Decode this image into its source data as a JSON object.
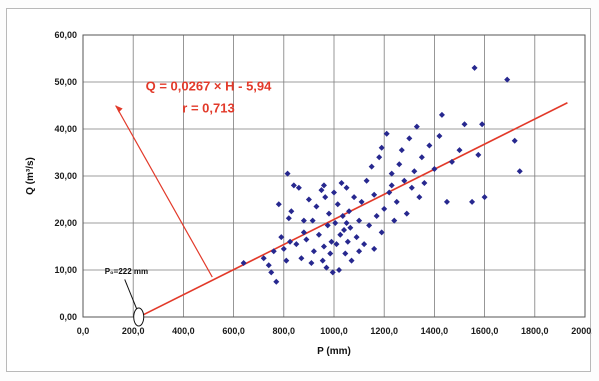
{
  "chart_data": {
    "type": "scatter",
    "title": "",
    "xlabel": "P (mm)",
    "ylabel": "Q (m³/s)",
    "xlim": [
      0,
      2000
    ],
    "ylim": [
      0,
      60
    ],
    "x_ticks": [
      "0,0",
      "200,0",
      "400,0",
      "600,0",
      "800,0",
      "1000,0",
      "1200,0",
      "1400,0",
      "1600,0",
      "1800,0",
      "2000,0"
    ],
    "y_ticks": [
      "0,00",
      "10,00",
      "20,00",
      "30,00",
      "40,00",
      "50,00",
      "60,00"
    ],
    "grid": true,
    "legend": "none",
    "colors": {
      "points": "#27288f",
      "trend": "#e23a2a",
      "grid": "#7d7d7d",
      "plot_border": "#555555"
    },
    "trend_line": {
      "slope": 0.0267,
      "intercept": -5.94,
      "x_range": [
        222,
        1930
      ]
    },
    "annotations": {
      "equation": "Q = 0,0267 × H - 5,94",
      "correlation": "r = 0,713",
      "threshold": "P₀=222 mm",
      "threshold_x": 222
    },
    "series": [
      {
        "points": [
          [
            640,
            11.5
          ],
          [
            720,
            12.5
          ],
          [
            740,
            11.0
          ],
          [
            750,
            9.5
          ],
          [
            760,
            14.0
          ],
          [
            770,
            7.5
          ],
          [
            780,
            24.0
          ],
          [
            790,
            17.0
          ],
          [
            800,
            14.5
          ],
          [
            810,
            12.0
          ],
          [
            815,
            30.5
          ],
          [
            820,
            21.0
          ],
          [
            825,
            16.0
          ],
          [
            830,
            22.5
          ],
          [
            840,
            28.0
          ],
          [
            850,
            15.5
          ],
          [
            860,
            27.5
          ],
          [
            870,
            12.5
          ],
          [
            880,
            18.0
          ],
          [
            890,
            16.5
          ],
          [
            900,
            25.0
          ],
          [
            910,
            11.5
          ],
          [
            915,
            20.5
          ],
          [
            920,
            14.0
          ],
          [
            930,
            23.5
          ],
          [
            940,
            17.5
          ],
          [
            950,
            27.0
          ],
          [
            955,
            12.0
          ],
          [
            960,
            15.0
          ],
          [
            965,
            25.5
          ],
          [
            970,
            10.5
          ],
          [
            975,
            19.5
          ],
          [
            980,
            22.0
          ],
          [
            985,
            13.5
          ],
          [
            990,
            16.0
          ],
          [
            995,
            9.5
          ],
          [
            1000,
            26.5
          ],
          [
            1005,
            20.0
          ],
          [
            1010,
            15.5
          ],
          [
            1015,
            24.0
          ],
          [
            1020,
            10.0
          ],
          [
            1025,
            17.5
          ],
          [
            1030,
            28.5
          ],
          [
            1035,
            21.5
          ],
          [
            1040,
            18.5
          ],
          [
            1045,
            13.5
          ],
          [
            1050,
            27.5
          ],
          [
            1055,
            16.0
          ],
          [
            1060,
            22.5
          ],
          [
            1065,
            19.0
          ],
          [
            1070,
            12.0
          ],
          [
            1080,
            25.5
          ],
          [
            1090,
            17.0
          ],
          [
            1100,
            20.5
          ],
          [
            1110,
            24.5
          ],
          [
            1120,
            15.5
          ],
          [
            1130,
            29.0
          ],
          [
            1140,
            19.5
          ],
          [
            1150,
            32.0
          ],
          [
            1160,
            26.0
          ],
          [
            1170,
            21.5
          ],
          [
            1180,
            34.0
          ],
          [
            1190,
            18.0
          ],
          [
            1200,
            23.0
          ],
          [
            1210,
            39.0
          ],
          [
            1220,
            26.5
          ],
          [
            1230,
            30.5
          ],
          [
            1240,
            20.5
          ],
          [
            1250,
            24.5
          ],
          [
            1260,
            32.5
          ],
          [
            1270,
            35.5
          ],
          [
            1280,
            29.0
          ],
          [
            1290,
            22.0
          ],
          [
            1300,
            38.0
          ],
          [
            1310,
            27.5
          ],
          [
            1320,
            31.0
          ],
          [
            1330,
            40.5
          ],
          [
            1340,
            25.5
          ],
          [
            1350,
            34.0
          ],
          [
            1360,
            28.5
          ],
          [
            1380,
            36.5
          ],
          [
            1400,
            31.5
          ],
          [
            1420,
            38.5
          ],
          [
            1430,
            43.0
          ],
          [
            1450,
            24.5
          ],
          [
            1470,
            33.0
          ],
          [
            1500,
            35.5
          ],
          [
            1520,
            41.0
          ],
          [
            1550,
            24.5
          ],
          [
            1560,
            53.0
          ],
          [
            1575,
            34.5
          ],
          [
            1590,
            41.0
          ],
          [
            1600,
            25.5
          ],
          [
            1690,
            50.5
          ],
          [
            1720,
            37.5
          ],
          [
            1740,
            31.0
          ],
          [
            1100,
            14.0
          ],
          [
            1050,
            20.0
          ],
          [
            880,
            20.5
          ],
          [
            1160,
            14.5
          ],
          [
            960,
            28.0
          ],
          [
            1230,
            28.0
          ],
          [
            1190,
            36.0
          ]
        ]
      }
    ]
  }
}
